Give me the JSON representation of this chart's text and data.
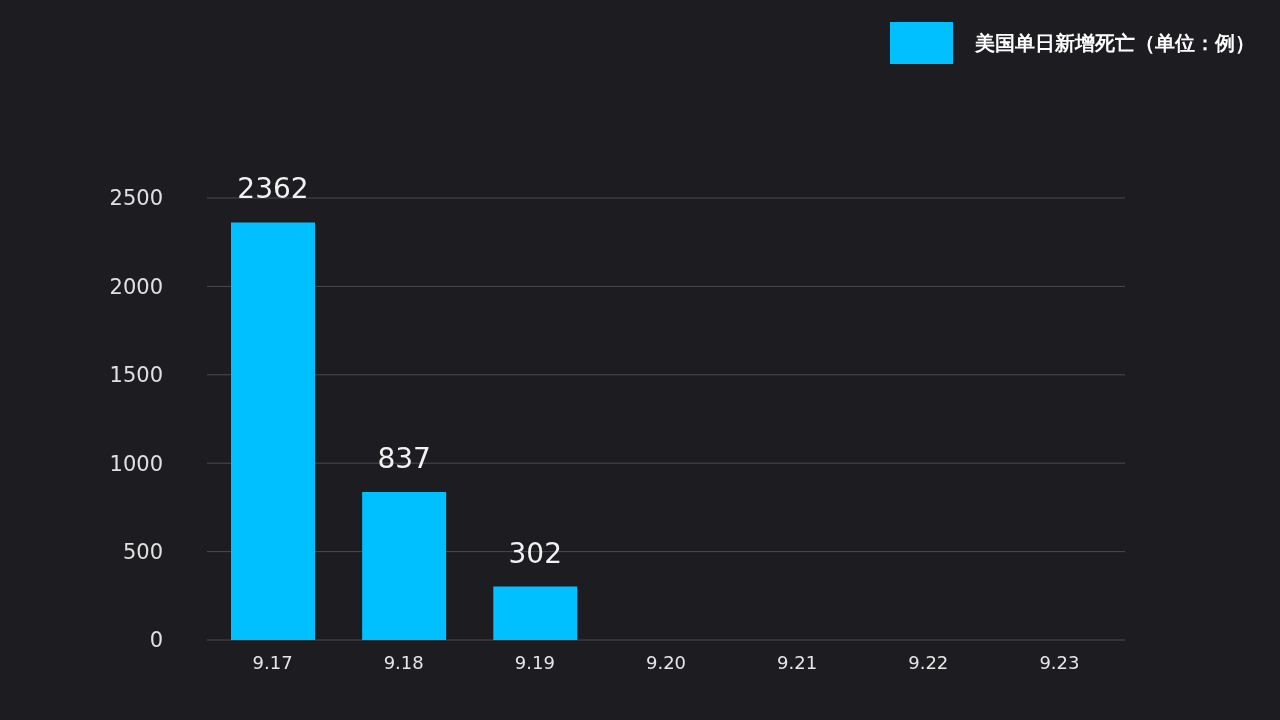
{
  "chart_data": {
    "type": "bar",
    "categories": [
      "9.17",
      "9.18",
      "9.19",
      "9.20",
      "9.21",
      "9.22",
      "9.23"
    ],
    "series": [
      {
        "name": "美国单日新增死亡（单位：例）",
        "color": "#00c0ff",
        "values": [
          2362,
          837,
          302,
          null,
          null,
          null,
          null
        ]
      }
    ],
    "ylim": [
      0,
      2500
    ],
    "yticks": [
      0,
      500,
      1000,
      1500,
      2000,
      2500
    ],
    "grid": "y",
    "legend": "top right",
    "data_labels": true
  }
}
